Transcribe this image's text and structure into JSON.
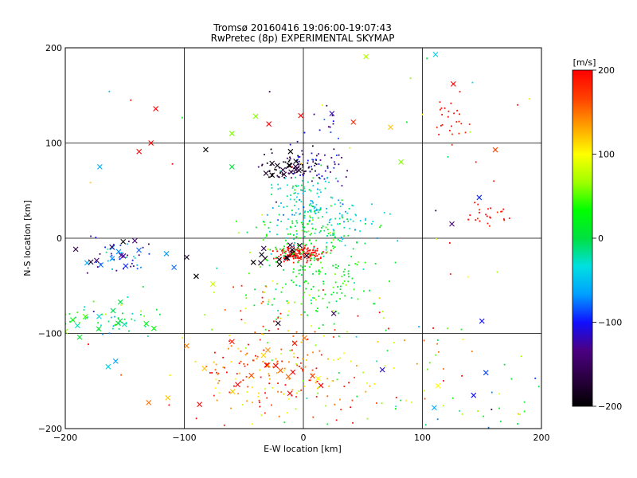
{
  "chart_data": {
    "type": "scatter",
    "title": "Tromsø 20160416 19:06:00-19:07:43",
    "subtitle": "RwPretec (8p) EXPERIMENTAL SKYMAP",
    "xlabel": "E-W location [km]",
    "ylabel": "N-S location [km]",
    "xlim": [
      -200,
      200
    ],
    "ylim": [
      -200,
      200
    ],
    "xticks": [
      -200,
      -100,
      0,
      100,
      200
    ],
    "yticks": [
      -200,
      -100,
      0,
      100,
      200
    ],
    "x_tick_labels": [
      "−200",
      "−100",
      "0",
      "100",
      "200"
    ],
    "y_tick_labels": [
      "−200",
      "−100",
      "0",
      "100",
      "200"
    ],
    "grid": true,
    "colorbar": {
      "label": "[m/s]",
      "range": [
        -200,
        200
      ],
      "ticks": [
        200,
        100,
        0,
        -100,
        -200
      ],
      "tick_labels": [
        "200",
        "100",
        "0",
        "−100",
        "−200"
      ],
      "colormap": [
        "#000000",
        "#2a0040",
        "#4b0082",
        "#1010ff",
        "#00a0ff",
        "#00e0e0",
        "#00e040",
        "#00ff00",
        "#a0ff00",
        "#ffff00",
        "#ffa000",
        "#ff4000",
        "#ff0000"
      ]
    },
    "markers": {
      "x": "large echo (x)",
      "dot": "small echo (dot)"
    },
    "clusters": [
      {
        "cx": -1,
        "cy": -16,
        "sx": 10,
        "sy": 4,
        "n": 150,
        "v": 200,
        "dv": 10,
        "m": "dot"
      },
      {
        "cx": -20,
        "cy": -18,
        "sx": 10,
        "sy": 6,
        "n": 14,
        "v": -190,
        "dv": 15,
        "m": "x"
      },
      {
        "cx": 5,
        "cy": 5,
        "sx": 25,
        "sy": 15,
        "n": 140,
        "v": 5,
        "dv": 30,
        "m": "dot"
      },
      {
        "cx": 5,
        "cy": 40,
        "sx": 15,
        "sy": 15,
        "n": 110,
        "v": -30,
        "dv": 30,
        "m": "dot"
      },
      {
        "cx": 15,
        "cy": -42,
        "sx": 22,
        "sy": 22,
        "n": 150,
        "v": 20,
        "dv": 20,
        "m": "dot"
      },
      {
        "cx": -15,
        "cy": 75,
        "sx": 15,
        "sy": 8,
        "n": 70,
        "v": -180,
        "dv": 25,
        "m": "dot"
      },
      {
        "cx": 15,
        "cy": 80,
        "sx": 12,
        "sy": 10,
        "n": 45,
        "v": -120,
        "dv": 20,
        "m": "dot"
      },
      {
        "cx": -20,
        "cy": 75,
        "sx": 12,
        "sy": 6,
        "n": 14,
        "v": -180,
        "dv": 20,
        "m": "x"
      },
      {
        "cx": -30,
        "cy": -140,
        "sx": 35,
        "sy": 25,
        "n": 150,
        "v": 160,
        "dv": 45,
        "m": "dot"
      },
      {
        "cx": -30,
        "cy": -145,
        "sx": 30,
        "sy": 22,
        "n": 22,
        "v": 170,
        "dv": 40,
        "m": "x"
      },
      {
        "cx": 20,
        "cy": -150,
        "sx": 40,
        "sy": 25,
        "n": 60,
        "v": 110,
        "dv": 60,
        "m": "dot"
      },
      {
        "cx": -150,
        "cy": -20,
        "sx": 15,
        "sy": 12,
        "n": 40,
        "v": -100,
        "dv": 40,
        "m": "dot"
      },
      {
        "cx": -140,
        "cy": -15,
        "sx": 25,
        "sy": 10,
        "n": 16,
        "v": -120,
        "dv": 40,
        "m": "x"
      },
      {
        "cx": -160,
        "cy": -85,
        "sx": 25,
        "sy": 10,
        "n": 45,
        "v": -10,
        "dv": 40,
        "m": "dot"
      },
      {
        "cx": -160,
        "cy": -85,
        "sx": 25,
        "sy": 10,
        "n": 13,
        "v": 10,
        "dv": 30,
        "m": "x"
      },
      {
        "cx": 40,
        "cy": 20,
        "sx": 15,
        "sy": 10,
        "n": 40,
        "v": -40,
        "dv": 20,
        "m": "dot"
      },
      {
        "cx": 155,
        "cy": 25,
        "sx": 8,
        "sy": 8,
        "n": 25,
        "v": 195,
        "dv": 10,
        "m": "dot"
      },
      {
        "cx": 125,
        "cy": 120,
        "sx": 8,
        "sy": 15,
        "n": 25,
        "v": 190,
        "dv": 12,
        "m": "dot"
      },
      {
        "cx": 15,
        "cy": 120,
        "sx": 10,
        "sy": 10,
        "n": 12,
        "v": -110,
        "dv": 25,
        "m": "dot"
      },
      {
        "cx": 140,
        "cy": -175,
        "sx": 35,
        "sy": 20,
        "n": 30,
        "v": 0,
        "dv": 90,
        "m": "dot"
      },
      {
        "cx": 60,
        "cy": -100,
        "sx": 60,
        "sy": 40,
        "n": 40,
        "v": 120,
        "dv": 60,
        "m": "dot"
      },
      {
        "cx": -40,
        "cy": -60,
        "sx": 20,
        "sy": 20,
        "n": 30,
        "v": 100,
        "dv": 70,
        "m": "dot"
      },
      {
        "cx": 0,
        "cy": 0,
        "sx": 140,
        "sy": 140,
        "n": 50,
        "v": 60,
        "dv": 120,
        "m": "dot"
      },
      {
        "cx": 0,
        "cy": 0,
        "sx": 140,
        "sy": 140,
        "n": 18,
        "v": 60,
        "dv": 120,
        "m": "x"
      }
    ],
    "points": [
      {
        "x": 111,
        "y": 193,
        "v": -40,
        "m": "x"
      },
      {
        "x": 126,
        "y": 162,
        "v": 200,
        "m": "x"
      },
      {
        "x": 24,
        "y": 131,
        "v": -120,
        "m": "x"
      },
      {
        "x": 42,
        "y": 122,
        "v": 180,
        "m": "x"
      },
      {
        "x": -124,
        "y": 136,
        "v": 200,
        "m": "x"
      },
      {
        "x": -82,
        "y": 93,
        "v": -200,
        "m": "x"
      },
      {
        "x": -138,
        "y": 91,
        "v": 200,
        "m": "x"
      },
      {
        "x": -128,
        "y": 100,
        "v": 200,
        "m": "x"
      },
      {
        "x": -171,
        "y": 75,
        "v": -60,
        "m": "x"
      },
      {
        "x": -60,
        "y": 110,
        "v": 60,
        "m": "x"
      },
      {
        "x": -40,
        "y": 128,
        "v": 60,
        "m": "x"
      },
      {
        "x": -29,
        "y": 120,
        "v": 200,
        "m": "x"
      },
      {
        "x": -60,
        "y": 75,
        "v": 0,
        "m": "x"
      },
      {
        "x": 82,
        "y": 80,
        "v": 60,
        "m": "x"
      },
      {
        "x": 150,
        "y": -87,
        "v": -100,
        "m": "x"
      },
      {
        "x": 113,
        "y": -155,
        "v": 100,
        "m": "x"
      },
      {
        "x": 110,
        "y": -178,
        "v": -60,
        "m": "x"
      },
      {
        "x": 143,
        "y": -165,
        "v": -100,
        "m": "x"
      },
      {
        "x": -98,
        "y": -20,
        "v": -180,
        "m": "x"
      },
      {
        "x": -90,
        "y": -40,
        "v": -200,
        "m": "x"
      },
      {
        "x": -164,
        "y": -135,
        "v": -40,
        "m": "x"
      },
      {
        "x": -200,
        "y": -98,
        "v": 60,
        "m": "x"
      },
      {
        "x": 90,
        "y": 168,
        "v": 60,
        "m": "dot"
      },
      {
        "x": 100,
        "y": 130,
        "v": 100,
        "m": "dot"
      },
      {
        "x": 180,
        "y": 140,
        "v": 200,
        "m": "dot"
      },
      {
        "x": 115,
        "y": 135,
        "v": 190,
        "m": "dot"
      },
      {
        "x": -145,
        "y": 145,
        "v": 200,
        "m": "dot"
      },
      {
        "x": -110,
        "y": 78,
        "v": 200,
        "m": "dot"
      },
      {
        "x": 160,
        "y": 60,
        "v": 190,
        "m": "dot"
      },
      {
        "x": 145,
        "y": 80,
        "v": 190,
        "m": "dot"
      },
      {
        "x": 123,
        "y": -5,
        "v": 200,
        "m": "dot"
      },
      {
        "x": 97,
        "y": -93,
        "v": -60,
        "m": "dot"
      },
      {
        "x": 182,
        "y": -185,
        "v": 80,
        "m": "dot"
      },
      {
        "x": 180,
        "y": -195,
        "v": 0,
        "m": "dot"
      },
      {
        "x": -200,
        "y": -80,
        "v": 60,
        "m": "dot"
      }
    ]
  }
}
